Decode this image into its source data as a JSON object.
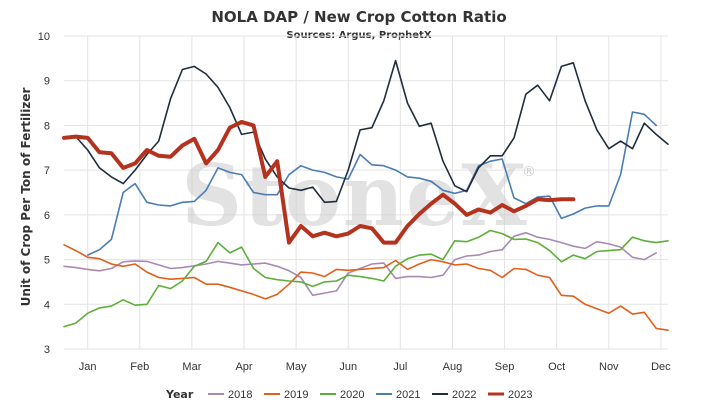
{
  "chart_data": {
    "type": "line",
    "title": "NOLA DAP / New Crop Cotton Ratio",
    "subtitle": "Sources: Argus, ProphetX",
    "ylabel": "Unit of Crop Per Ton of Fertilizer",
    "xlabel": "",
    "ylim": [
      3,
      10
    ],
    "yticks": [
      3,
      4,
      5,
      6,
      7,
      8,
      9,
      10
    ],
    "xlim": [
      1,
      52
    ],
    "x_ticks": [
      {
        "label": "Jan",
        "x": 3
      },
      {
        "label": "Feb",
        "x": 7.4
      },
      {
        "label": "Mar",
        "x": 11.8
      },
      {
        "label": "Apr",
        "x": 16.2
      },
      {
        "label": "May",
        "x": 20.6
      },
      {
        "label": "Jun",
        "x": 25
      },
      {
        "label": "Jul",
        "x": 29.4
      },
      {
        "label": "Aug",
        "x": 33.8
      },
      {
        "label": "Sep",
        "x": 38.2
      },
      {
        "label": "Oct",
        "x": 42.6
      },
      {
        "label": "Nov",
        "x": 47
      },
      {
        "label": "Dec",
        "x": 51.4
      }
    ],
    "grid": true,
    "legend": {
      "title": "Year",
      "placement": "bottom"
    },
    "watermark": "StoneX",
    "watermark_mark": "®",
    "series": [
      {
        "name": "2018",
        "color": "#a78bb5",
        "width": 1.6,
        "points": [
          [
            1,
            4.85
          ],
          [
            2,
            4.82
          ],
          [
            3,
            4.78
          ],
          [
            4,
            4.75
          ],
          [
            5,
            4.8
          ],
          [
            6,
            4.95
          ],
          [
            7,
            4.97
          ],
          [
            8,
            4.96
          ],
          [
            9,
            4.88
          ],
          [
            10,
            4.8
          ],
          [
            11,
            4.82
          ],
          [
            12,
            4.86
          ],
          [
            13,
            4.9
          ],
          [
            14,
            4.96
          ],
          [
            15,
            4.92
          ],
          [
            16,
            4.88
          ],
          [
            17,
            4.9
          ],
          [
            18,
            4.92
          ],
          [
            19,
            4.85
          ],
          [
            20,
            4.75
          ],
          [
            21,
            4.6
          ],
          [
            22,
            4.2
          ],
          [
            23,
            4.25
          ],
          [
            24,
            4.3
          ],
          [
            25,
            4.7
          ],
          [
            26,
            4.8
          ],
          [
            27,
            4.9
          ],
          [
            28,
            4.92
          ],
          [
            29,
            4.58
          ],
          [
            30,
            4.62
          ],
          [
            31,
            4.62
          ],
          [
            32,
            4.6
          ],
          [
            33,
            4.65
          ],
          [
            34,
            5.0
          ],
          [
            35,
            5.08
          ],
          [
            36,
            5.1
          ],
          [
            37,
            5.18
          ],
          [
            38,
            5.22
          ],
          [
            39,
            5.52
          ],
          [
            40,
            5.6
          ],
          [
            41,
            5.5
          ],
          [
            42,
            5.45
          ],
          [
            43,
            5.38
          ],
          [
            44,
            5.3
          ],
          [
            45,
            5.25
          ],
          [
            46,
            5.4
          ],
          [
            47,
            5.35
          ],
          [
            48,
            5.28
          ],
          [
            49,
            5.05
          ],
          [
            50,
            5.0
          ],
          [
            51,
            5.15
          ]
        ]
      },
      {
        "name": "2019",
        "color": "#e0601c",
        "width": 1.6,
        "points": [
          [
            1,
            5.33
          ],
          [
            2,
            5.2
          ],
          [
            3,
            5.05
          ],
          [
            4,
            5.02
          ],
          [
            5,
            4.9
          ],
          [
            6,
            4.85
          ],
          [
            7,
            4.9
          ],
          [
            8,
            4.72
          ],
          [
            9,
            4.6
          ],
          [
            10,
            4.56
          ],
          [
            11,
            4.58
          ],
          [
            12,
            4.6
          ],
          [
            13,
            4.45
          ],
          [
            14,
            4.45
          ],
          [
            15,
            4.38
          ],
          [
            16,
            4.3
          ],
          [
            17,
            4.22
          ],
          [
            18,
            4.12
          ],
          [
            19,
            4.22
          ],
          [
            20,
            4.45
          ],
          [
            21,
            4.72
          ],
          [
            22,
            4.7
          ],
          [
            23,
            4.62
          ],
          [
            24,
            4.78
          ],
          [
            25,
            4.76
          ],
          [
            26,
            4.78
          ],
          [
            27,
            4.8
          ],
          [
            28,
            4.82
          ],
          [
            29,
            4.98
          ],
          [
            30,
            4.78
          ],
          [
            31,
            4.9
          ],
          [
            32,
            5.0
          ],
          [
            33,
            4.95
          ],
          [
            34,
            4.88
          ],
          [
            35,
            4.9
          ],
          [
            36,
            4.8
          ],
          [
            37,
            4.76
          ],
          [
            38,
            4.6
          ],
          [
            39,
            4.8
          ],
          [
            40,
            4.78
          ],
          [
            41,
            4.65
          ],
          [
            42,
            4.6
          ],
          [
            43,
            4.2
          ],
          [
            44,
            4.18
          ],
          [
            45,
            4.0
          ],
          [
            46,
            3.9
          ],
          [
            47,
            3.8
          ],
          [
            48,
            3.96
          ],
          [
            49,
            3.78
          ],
          [
            50,
            3.82
          ],
          [
            51,
            3.46
          ],
          [
            52,
            3.42
          ]
        ]
      },
      {
        "name": "2020",
        "color": "#5fae3a",
        "width": 1.6,
        "points": [
          [
            1,
            3.5
          ],
          [
            2,
            3.58
          ],
          [
            3,
            3.8
          ],
          [
            4,
            3.92
          ],
          [
            5,
            3.96
          ],
          [
            6,
            4.1
          ],
          [
            7,
            3.98
          ],
          [
            8,
            4.0
          ],
          [
            9,
            4.42
          ],
          [
            10,
            4.35
          ],
          [
            11,
            4.52
          ],
          [
            12,
            4.85
          ],
          [
            13,
            4.96
          ],
          [
            14,
            5.38
          ],
          [
            15,
            5.15
          ],
          [
            16,
            5.28
          ],
          [
            17,
            4.8
          ],
          [
            18,
            4.6
          ],
          [
            19,
            4.55
          ],
          [
            20,
            4.52
          ],
          [
            21,
            4.5
          ],
          [
            22,
            4.4
          ],
          [
            23,
            4.5
          ],
          [
            24,
            4.52
          ],
          [
            25,
            4.65
          ],
          [
            26,
            4.62
          ],
          [
            27,
            4.58
          ],
          [
            28,
            4.52
          ],
          [
            29,
            4.85
          ],
          [
            30,
            5.02
          ],
          [
            31,
            5.1
          ],
          [
            32,
            5.12
          ],
          [
            33,
            5.0
          ],
          [
            34,
            5.42
          ],
          [
            35,
            5.4
          ],
          [
            36,
            5.5
          ],
          [
            37,
            5.65
          ],
          [
            38,
            5.58
          ],
          [
            39,
            5.45
          ],
          [
            40,
            5.46
          ],
          [
            41,
            5.38
          ],
          [
            42,
            5.2
          ],
          [
            43,
            4.95
          ],
          [
            44,
            5.1
          ],
          [
            45,
            5.02
          ],
          [
            46,
            5.18
          ],
          [
            47,
            5.2
          ],
          [
            48,
            5.22
          ],
          [
            49,
            5.5
          ],
          [
            50,
            5.42
          ],
          [
            51,
            5.38
          ],
          [
            52,
            5.42
          ]
        ]
      },
      {
        "name": "2021",
        "color": "#4a7db3",
        "width": 1.6,
        "points": [
          [
            3,
            5.1
          ],
          [
            4,
            5.22
          ],
          [
            5,
            5.45
          ],
          [
            6,
            6.5
          ],
          [
            7,
            6.7
          ],
          [
            8,
            6.28
          ],
          [
            9,
            6.22
          ],
          [
            10,
            6.2
          ],
          [
            11,
            6.28
          ],
          [
            12,
            6.3
          ],
          [
            13,
            6.55
          ],
          [
            14,
            7.05
          ],
          [
            15,
            6.95
          ],
          [
            16,
            6.9
          ],
          [
            17,
            6.5
          ],
          [
            18,
            6.45
          ],
          [
            19,
            6.45
          ],
          [
            20,
            6.9
          ],
          [
            21,
            7.1
          ],
          [
            22,
            7.0
          ],
          [
            23,
            6.95
          ],
          [
            24,
            6.85
          ],
          [
            25,
            6.8
          ],
          [
            26,
            7.35
          ],
          [
            27,
            7.12
          ],
          [
            28,
            7.1
          ],
          [
            29,
            7.0
          ],
          [
            30,
            6.85
          ],
          [
            31,
            6.82
          ],
          [
            32,
            6.75
          ],
          [
            33,
            6.55
          ],
          [
            34,
            6.48
          ],
          [
            35,
            6.55
          ],
          [
            36,
            7.1
          ],
          [
            37,
            7.2
          ],
          [
            38,
            7.25
          ],
          [
            39,
            6.38
          ],
          [
            40,
            6.25
          ],
          [
            41,
            6.4
          ],
          [
            42,
            6.42
          ],
          [
            43,
            5.92
          ],
          [
            44,
            6.02
          ],
          [
            45,
            6.15
          ],
          [
            46,
            6.2
          ],
          [
            47,
            6.2
          ],
          [
            48,
            6.9
          ],
          [
            49,
            8.3
          ],
          [
            50,
            8.25
          ],
          [
            51,
            8.0
          ]
        ]
      },
      {
        "name": "2022",
        "color": "#1f2d3d",
        "width": 1.6,
        "points": [
          [
            1,
            7.72
          ],
          [
            2,
            7.75
          ],
          [
            3,
            7.45
          ],
          [
            4,
            7.05
          ],
          [
            5,
            6.85
          ],
          [
            6,
            6.7
          ],
          [
            7,
            7.0
          ],
          [
            8,
            7.35
          ],
          [
            9,
            7.65
          ],
          [
            10,
            8.6
          ],
          [
            11,
            9.25
          ],
          [
            12,
            9.32
          ],
          [
            13,
            9.15
          ],
          [
            14,
            8.85
          ],
          [
            15,
            8.4
          ],
          [
            16,
            7.8
          ],
          [
            17,
            7.85
          ],
          [
            18,
            7.25
          ],
          [
            19,
            6.85
          ],
          [
            20,
            6.6
          ],
          [
            21,
            6.55
          ],
          [
            22,
            6.62
          ],
          [
            23,
            6.28
          ],
          [
            24,
            6.3
          ],
          [
            25,
            7.0
          ],
          [
            26,
            7.9
          ],
          [
            27,
            7.95
          ],
          [
            28,
            8.55
          ],
          [
            29,
            9.45
          ],
          [
            30,
            8.5
          ],
          [
            31,
            7.98
          ],
          [
            32,
            8.05
          ],
          [
            33,
            7.2
          ],
          [
            34,
            6.65
          ],
          [
            35,
            6.52
          ],
          [
            36,
            7.05
          ],
          [
            37,
            7.32
          ],
          [
            38,
            7.32
          ],
          [
            39,
            7.72
          ],
          [
            40,
            8.7
          ],
          [
            41,
            8.9
          ],
          [
            42,
            8.55
          ],
          [
            43,
            9.32
          ],
          [
            44,
            9.4
          ],
          [
            45,
            8.55
          ],
          [
            46,
            7.9
          ],
          [
            47,
            7.48
          ],
          [
            48,
            7.65
          ],
          [
            49,
            7.48
          ],
          [
            50,
            8.05
          ],
          [
            51,
            7.8
          ],
          [
            52,
            7.58
          ]
        ]
      },
      {
        "name": "2023",
        "color": "#b5321f",
        "width": 4,
        "points": [
          [
            1,
            7.72
          ],
          [
            2,
            7.75
          ],
          [
            3,
            7.72
          ],
          [
            4,
            7.4
          ],
          [
            5,
            7.38
          ],
          [
            6,
            7.05
          ],
          [
            7,
            7.15
          ],
          [
            8,
            7.45
          ],
          [
            9,
            7.32
          ],
          [
            10,
            7.3
          ],
          [
            11,
            7.55
          ],
          [
            12,
            7.7
          ],
          [
            13,
            7.15
          ],
          [
            14,
            7.45
          ],
          [
            15,
            7.95
          ],
          [
            16,
            8.08
          ],
          [
            17,
            8.0
          ],
          [
            18,
            6.85
          ],
          [
            19,
            7.2
          ],
          [
            20,
            5.38
          ],
          [
            21,
            5.75
          ],
          [
            22,
            5.52
          ],
          [
            23,
            5.6
          ],
          [
            24,
            5.52
          ],
          [
            25,
            5.58
          ],
          [
            26,
            5.75
          ],
          [
            27,
            5.7
          ],
          [
            28,
            5.38
          ],
          [
            29,
            5.38
          ],
          [
            30,
            5.75
          ],
          [
            31,
            6.02
          ],
          [
            32,
            6.25
          ],
          [
            33,
            6.45
          ],
          [
            34,
            6.25
          ],
          [
            35,
            6.0
          ],
          [
            36,
            6.12
          ],
          [
            37,
            6.05
          ],
          [
            38,
            6.22
          ],
          [
            39,
            6.08
          ],
          [
            40,
            6.2
          ],
          [
            41,
            6.35
          ],
          [
            42,
            6.33
          ],
          [
            43,
            6.35
          ],
          [
            44,
            6.35
          ]
        ]
      }
    ]
  }
}
